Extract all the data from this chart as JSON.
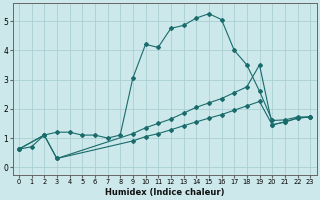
{
  "xlabel": "Humidex (Indice chaleur)",
  "background_color": "#cce8ea",
  "grid_color": "#aacfd4",
  "line_color": "#1a6b6b",
  "xlim": [
    -0.5,
    23.5
  ],
  "ylim": [
    -0.25,
    5.6
  ],
  "xticks": [
    0,
    1,
    2,
    3,
    4,
    5,
    6,
    7,
    8,
    9,
    10,
    11,
    12,
    13,
    14,
    15,
    16,
    17,
    18,
    19,
    20,
    21,
    22,
    23
  ],
  "yticks": [
    0,
    1,
    2,
    3,
    4,
    5
  ],
  "line1_x": [
    0,
    1,
    2,
    3,
    4,
    5,
    6,
    7,
    8,
    9,
    10,
    11,
    12,
    13,
    14,
    15,
    16,
    17,
    18,
    19,
    20,
    21,
    22,
    23
  ],
  "line1_y": [
    0.62,
    0.7,
    1.1,
    1.2,
    1.2,
    1.1,
    1.1,
    1.0,
    1.1,
    3.05,
    4.2,
    4.1,
    4.75,
    4.85,
    5.1,
    5.25,
    5.05,
    4.0,
    3.5,
    2.6,
    1.6,
    1.62,
    1.72,
    1.72
  ],
  "line2_x": [
    0,
    2,
    3,
    9,
    10,
    11,
    12,
    13,
    14,
    15,
    16,
    17,
    18,
    19,
    20,
    21,
    22,
    23
  ],
  "line2_y": [
    0.62,
    1.1,
    0.3,
    1.15,
    1.35,
    1.5,
    1.65,
    1.85,
    2.05,
    2.2,
    2.35,
    2.55,
    2.75,
    3.5,
    1.45,
    1.55,
    1.68,
    1.72
  ],
  "line3_x": [
    0,
    2,
    3,
    9,
    10,
    11,
    12,
    13,
    14,
    15,
    16,
    17,
    18,
    19,
    20,
    21,
    22,
    23
  ],
  "line3_y": [
    0.62,
    1.1,
    0.3,
    0.9,
    1.05,
    1.15,
    1.28,
    1.42,
    1.55,
    1.68,
    1.8,
    1.95,
    2.1,
    2.25,
    1.45,
    1.55,
    1.68,
    1.72
  ]
}
